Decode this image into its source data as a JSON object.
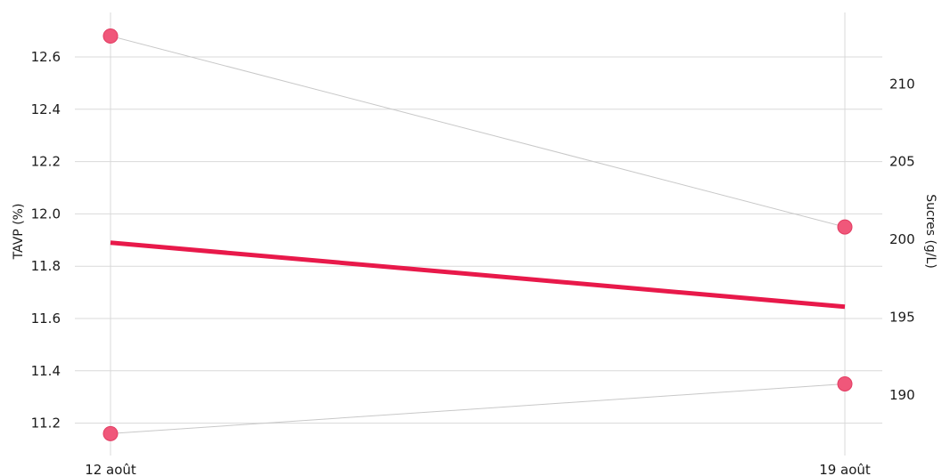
{
  "chart_data": {
    "type": "line",
    "x": [
      "12 août",
      "19 août"
    ],
    "ylabel": "TAVP (%)",
    "ylabel_right": "Sucres (g/L)",
    "y_left_ticks": [
      "11.2",
      "11.4",
      "11.6",
      "11.8",
      "12.0",
      "12.2",
      "12.4",
      "12.6"
    ],
    "y_right_ticks": [
      "190",
      "195",
      "200",
      "205",
      "210"
    ],
    "ylim": [
      11.1,
      12.77
    ],
    "ylim_right": [
      186.5,
      214.6
    ],
    "grid": true,
    "series": [
      {
        "axis": "left",
        "style": "thick",
        "color": "#e8194a",
        "values": [
          11.89,
          11.645
        ]
      },
      {
        "axis": "left",
        "style": "thin-markers",
        "color": "#f0577a",
        "values": [
          12.68,
          11.95
        ]
      },
      {
        "axis": "left",
        "style": "thin-markers",
        "color": "#f0577a",
        "values": [
          11.16,
          11.35
        ]
      }
    ]
  }
}
